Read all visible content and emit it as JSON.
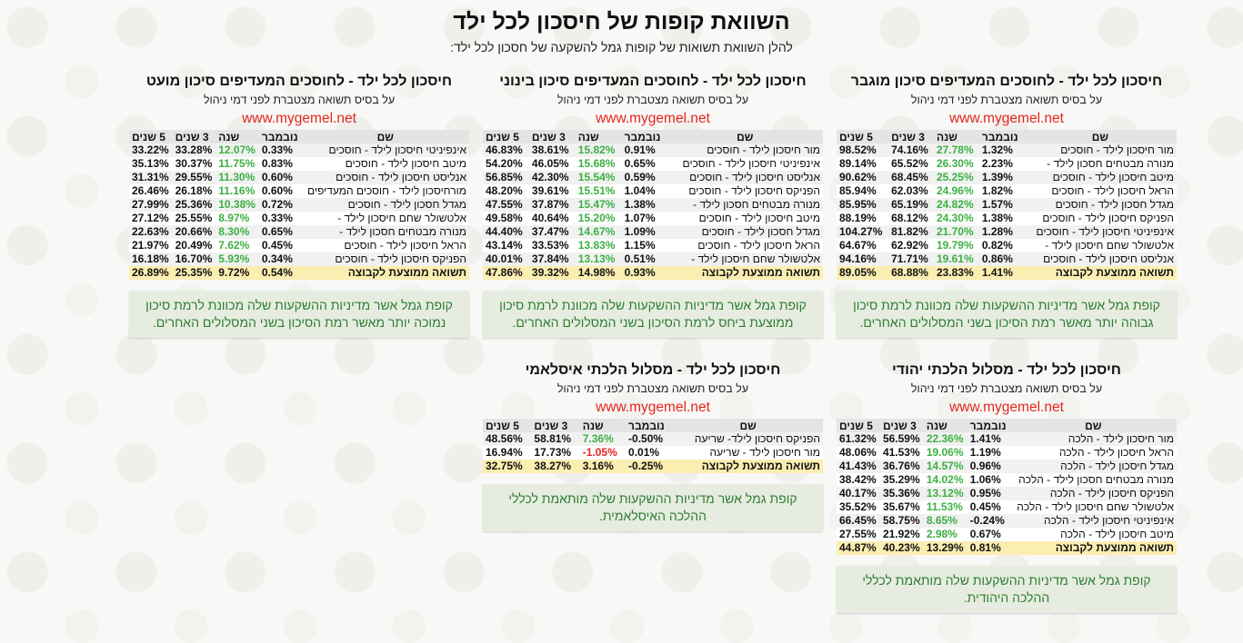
{
  "title": "השוואת קופות של חיסכון לכל ילד",
  "subtitle": "להלן השוואת תשואות של קופות גמל להשקעה של חסכון לכל ילד:",
  "headers": [
    "שם",
    "נובמבר",
    "שנה",
    "3 שנים",
    "5 שנים"
  ],
  "colors": {
    "positive": "#3cb043",
    "negative": "#e3261e",
    "url": "#e3261e",
    "average_bg": "#fbeeb1",
    "note_bg": "#e6ede0",
    "note_text": "#2e7d32"
  },
  "cards": [
    {
      "title": "חיסכון לכל ילד - לחוסכים המעדיפים סיכון מוגבר",
      "sub": "על בסיס תשואה מצטברת לפני דמי ניהול",
      "url": "www.mygemel.net",
      "rows": [
        [
          "מור חיסכון לילד - חוסכים",
          "1.32%",
          "27.78%",
          "74.16%",
          "98.52%"
        ],
        [
          "מנורה מבטחים חסכון לילד -",
          "2.23%",
          "26.30%",
          "65.52%",
          "89.14%"
        ],
        [
          "מיטב חיסכון לילד - חוסכים",
          "1.39%",
          "25.25%",
          "68.45%",
          "90.62%"
        ],
        [
          "הראל חיסכון לילד - חוסכים",
          "1.82%",
          "24.96%",
          "62.03%",
          "85.94%"
        ],
        [
          "מגדל חסכון לילד - חוסכים",
          "1.57%",
          "24.82%",
          "65.19%",
          "85.95%"
        ],
        [
          "הפניקס חיסכון לילד - חוסכים",
          "1.38%",
          "24.30%",
          "68.12%",
          "88.19%"
        ],
        [
          "אינפיניטי חיסכון לילד - חוסכים",
          "1.28%",
          "21.70%",
          "81.82%",
          "104.27%"
        ],
        [
          "אלטשולר שחם חיסכון לילד -",
          "0.82%",
          "19.79%",
          "62.92%",
          "64.67%"
        ],
        [
          "אנליסט חיסכון לילד - חוסכים",
          "0.86%",
          "19.61%",
          "71.71%",
          "94.16%"
        ]
      ],
      "average": [
        "תשואה ממוצעת לקבוצה",
        "1.41%",
        "23.83%",
        "68.88%",
        "89.05%"
      ],
      "note": "קופת גמל אשר מדיניות ההשקעות שלה מכוונת לרמת סיכון גבוהה יותר מאשר רמת הסיכון בשני המסלולים האחרים."
    },
    {
      "title": "חיסכון לכל ילד - לחוסכים המעדיפים סיכון בינוני",
      "sub": "על בסיס תשואה מצטברת לפני דמי ניהול",
      "url": "www.mygemel.net",
      "rows": [
        [
          "מור חיסכון לילד - חוסכים",
          "0.91%",
          "15.82%",
          "38.61%",
          "46.83%"
        ],
        [
          "אינפיניטי חיסכון לילד - חוסכים",
          "0.65%",
          "15.68%",
          "46.05%",
          "54.20%"
        ],
        [
          "אנליסט חיסכון לילד - חוסכים",
          "0.59%",
          "15.54%",
          "42.30%",
          "56.85%"
        ],
        [
          "הפניקס חיסכון לילד - חוסכים",
          "1.04%",
          "15.51%",
          "39.61%",
          "48.20%"
        ],
        [
          "מנורה מבטחים חסכון לילד -",
          "1.38%",
          "15.47%",
          "37.87%",
          "47.55%"
        ],
        [
          "מיטב חיסכון לילד - חוסכים",
          "1.07%",
          "15.20%",
          "40.64%",
          "49.58%"
        ],
        [
          "מגדל חסכון לילד - חוסכים",
          "1.09%",
          "14.67%",
          "37.47%",
          "44.40%"
        ],
        [
          "הראל חיסכון לילד - חוסכים",
          "1.15%",
          "13.83%",
          "33.53%",
          "43.14%"
        ],
        [
          "אלטשולר שחם חיסכון לילד -",
          "0.51%",
          "13.13%",
          "37.84%",
          "40.01%"
        ]
      ],
      "average": [
        "תשואה ממוצעת לקבוצה",
        "0.93%",
        "14.98%",
        "39.32%",
        "47.86%"
      ],
      "note": "קופת גמל אשר מדיניות ההשקעות שלה מכוונת לרמת סיכון ממוצעת ביחס לרמת הסיכון בשני המסלולים האחרים."
    },
    {
      "title": "חיסכון לכל ילד - לחוסכים המעדיפים סיכון מועט",
      "sub": "על בסיס תשואה מצטברת לפני דמי ניהול",
      "url": "www.mygemel.net",
      "rows": [
        [
          "אינפיניטי חיסכון לילד - חוסכים",
          "0.33%",
          "12.07%",
          "33.28%",
          "33.22%"
        ],
        [
          "מיטב חיסכון לילד - חוסכים",
          "0.83%",
          "11.75%",
          "30.37%",
          "35.13%"
        ],
        [
          "אנליסט חיסכון לילד - חוסכים",
          "0.60%",
          "11.30%",
          "29.55%",
          "31.31%"
        ],
        [
          "מורחיסכון לילד - חוסכים המעדיפים",
          "0.60%",
          "11.16%",
          "26.18%",
          "26.46%"
        ],
        [
          "מגדל חסכון לילד - חוסכים",
          "0.72%",
          "10.38%",
          "25.36%",
          "27.99%"
        ],
        [
          "אלטשולר שחם חיסכון לילד -",
          "0.33%",
          "8.97%",
          "25.55%",
          "27.12%"
        ],
        [
          "מנורה מבטחים חסכון לילד -",
          "0.65%",
          "8.30%",
          "20.66%",
          "22.63%"
        ],
        [
          "הראל חיסכון לילד - חוסכים",
          "0.45%",
          "7.62%",
          "20.49%",
          "21.97%"
        ],
        [
          "הפניקס חיסכון לילד - חוסכים",
          "0.34%",
          "5.93%",
          "16.70%",
          "16.18%"
        ]
      ],
      "average": [
        "תשואה ממוצעת לקבוצה",
        "0.54%",
        "9.72%",
        "25.35%",
        "26.89%"
      ],
      "note": "קופת גמל אשר מדיניות ההשקעות שלה מכוונת לרמת סיכון נמוכה יותר מאשר רמת הסיכון בשני המסלולים האחרים."
    },
    {
      "title": "חיסכון לכל ילד - מסלול הלכתי יהודי",
      "sub": "על בסיס תשואה מצטברת לפני דמי ניהול",
      "url": "www.mygemel.net",
      "rows": [
        [
          "מור חיסכון לילד - הלכה",
          "1.41%",
          "22.36%",
          "56.59%",
          "61.32%"
        ],
        [
          "הראל חיסכון לילד - הלכה",
          "1.19%",
          "19.06%",
          "41.53%",
          "48.06%"
        ],
        [
          "מגדל חיסכון לילד - הלכה",
          "0.96%",
          "14.57%",
          "36.76%",
          "41.43%"
        ],
        [
          "מנורה מבטחים חסכון לילד - הלכה",
          "1.06%",
          "14.02%",
          "35.29%",
          "38.42%"
        ],
        [
          "הפניקס חיסכון לילד - הלכה",
          "0.95%",
          "13.12%",
          "35.36%",
          "40.17%"
        ],
        [
          "אלטשולר שחם חיסכון לילד - הלכה",
          "0.45%",
          "11.53%",
          "35.67%",
          "35.52%"
        ],
        [
          "אינפיניטי חיסכון לילד - הלכה",
          "-0.24%",
          "8.65%",
          "58.75%",
          "66.45%"
        ],
        [
          "מיטב חיסכון לילד - הלכה",
          "0.67%",
          "2.98%",
          "21.92%",
          "27.55%"
        ]
      ],
      "average": [
        "תשואה ממוצעת לקבוצה",
        "0.81%",
        "13.29%",
        "40.23%",
        "44.87%"
      ],
      "note": "קופת גמל אשר מדיניות ההשקעות שלה מותאמת לכללי ההלכה היהודית."
    },
    {
      "title": "חיסכון לכל ילד - מסלול הלכתי איסלאמי",
      "sub": "על בסיס תשואה מצטברת לפני דמי ניהול",
      "url": "www.mygemel.net",
      "rows": [
        [
          "הפניקס חיסכון לילד- שריעה",
          "-0.50%",
          "7.36%",
          "58.81%",
          "48.56%"
        ],
        [
          "מור חיסכון לילד - שריעה",
          "0.01%",
          "-1.05%",
          "17.73%",
          "16.94%"
        ]
      ],
      "average": [
        "תשואה ממוצעת לקבוצה",
        "-0.25%",
        "3.16%",
        "38.27%",
        "32.75%"
      ],
      "note": "קופת גמל אשר מדיניות ההשקעות שלה מותאמת לכללי ההלכה האיסלאמית."
    }
  ]
}
